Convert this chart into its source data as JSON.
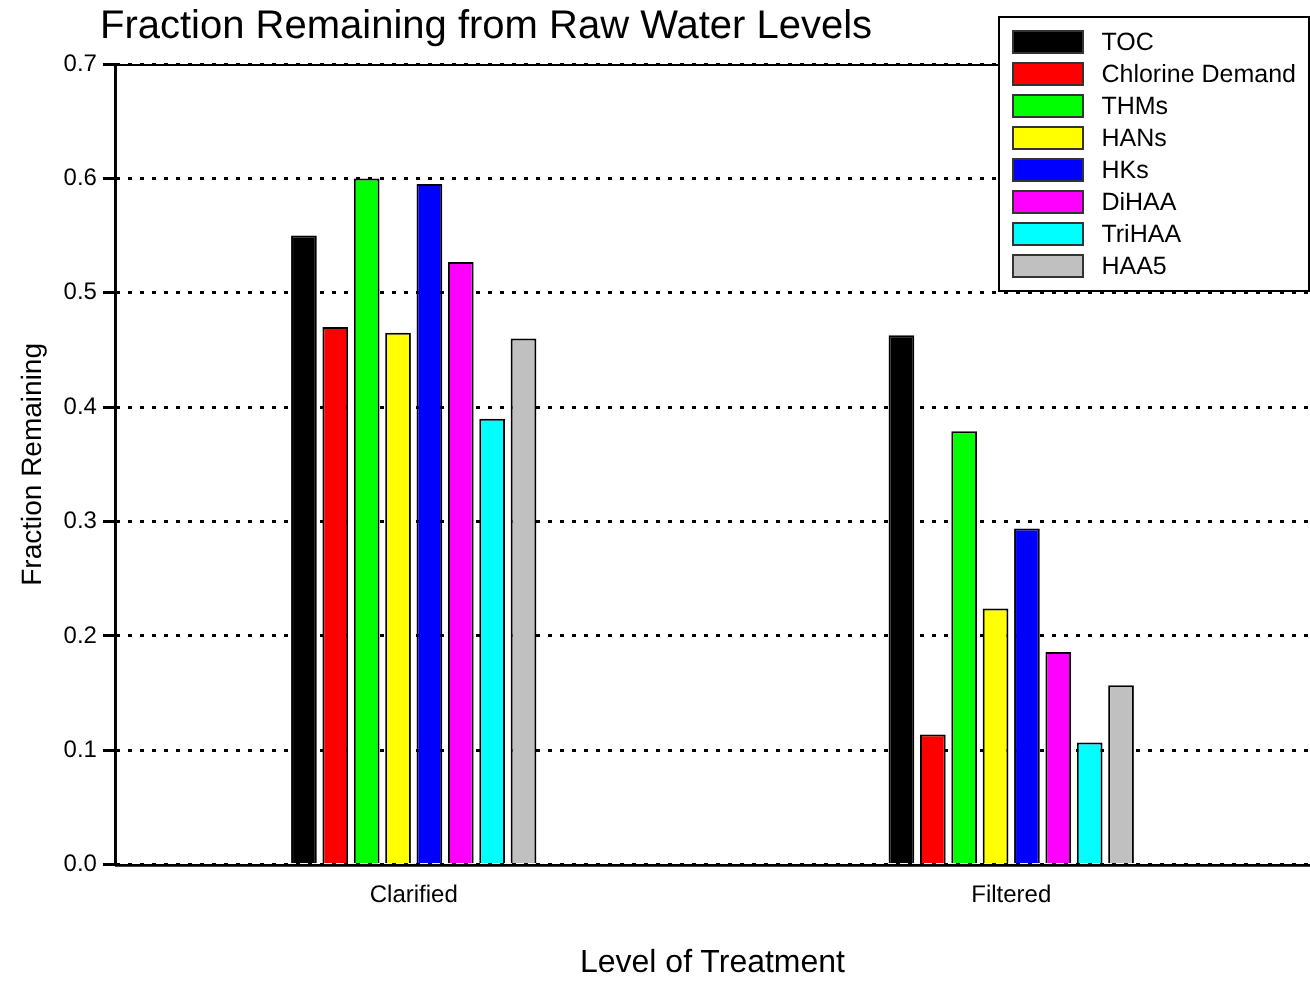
{
  "chart_data": {
    "type": "bar",
    "title": "Fraction Remaining from Raw Water Levels",
    "xlabel": "Level of Treatment",
    "ylabel": "Fraction Remaining",
    "categories": [
      "Clarified",
      "Filtered"
    ],
    "series": [
      {
        "name": "TOC",
        "color": "#000000",
        "values": [
          0.55,
          0.463
        ]
      },
      {
        "name": "Chlorine Demand",
        "color": "#ff0000",
        "values": [
          0.47,
          0.114
        ]
      },
      {
        "name": "THMs",
        "color": "#00ff00",
        "values": [
          0.6,
          0.379
        ]
      },
      {
        "name": "HANs",
        "color": "#ffff00",
        "values": [
          0.465,
          0.224
        ]
      },
      {
        "name": "HKs",
        "color": "#0000ff",
        "values": [
          0.595,
          0.294
        ]
      },
      {
        "name": "DiHAA",
        "color": "#ff00ff",
        "values": [
          0.527,
          0.186
        ]
      },
      {
        "name": "TriHAA",
        "color": "#00ffff",
        "values": [
          0.39,
          0.107
        ]
      },
      {
        "name": "HAA5",
        "color": "#c0c0c0",
        "values": [
          0.46,
          0.157
        ]
      }
    ],
    "ylim": [
      0,
      0.7
    ],
    "yticks": [
      {
        "value": 0,
        "label": "0.0"
      },
      0.1,
      0.2,
      0.3,
      0.4,
      0.5,
      0.6,
      0.7
    ],
    "grid": "y",
    "legend": "top right"
  }
}
